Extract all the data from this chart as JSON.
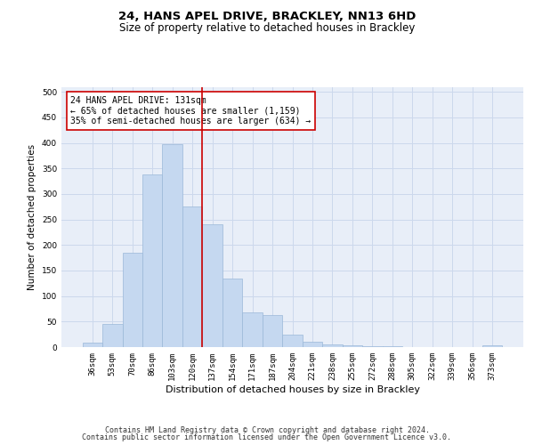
{
  "title_line1": "24, HANS APEL DRIVE, BRACKLEY, NN13 6HD",
  "title_line2": "Size of property relative to detached houses in Brackley",
  "xlabel": "Distribution of detached houses by size in Brackley",
  "ylabel": "Number of detached properties",
  "categories": [
    "36sqm",
    "53sqm",
    "70sqm",
    "86sqm",
    "103sqm",
    "120sqm",
    "137sqm",
    "154sqm",
    "171sqm",
    "187sqm",
    "204sqm",
    "221sqm",
    "238sqm",
    "255sqm",
    "272sqm",
    "288sqm",
    "305sqm",
    "322sqm",
    "339sqm",
    "356sqm",
    "373sqm"
  ],
  "values": [
    8,
    46,
    184,
    338,
    397,
    275,
    240,
    135,
    68,
    62,
    25,
    11,
    5,
    4,
    2,
    1,
    0,
    0,
    0,
    0,
    3
  ],
  "bar_color": "#c5d8f0",
  "bar_edge_color": "#9ab8d8",
  "vline_x": 5.5,
  "vline_color": "#cc0000",
  "annotation_text": "24 HANS APEL DRIVE: 131sqm\n← 65% of detached houses are smaller (1,159)\n35% of semi-detached houses are larger (634) →",
  "annotation_box_color": "#ffffff",
  "annotation_box_edge": "#cc0000",
  "annotation_fontsize": 7.0,
  "grid_color": "#ccd8ec",
  "background_color": "#e8eef8",
  "ylim": [
    0,
    510
  ],
  "yticks": [
    0,
    50,
    100,
    150,
    200,
    250,
    300,
    350,
    400,
    450,
    500
  ],
  "footnote_line1": "Contains HM Land Registry data © Crown copyright and database right 2024.",
  "footnote_line2": "Contains public sector information licensed under the Open Government Licence v3.0.",
  "title_fontsize": 9.5,
  "subtitle_fontsize": 8.5,
  "xlabel_fontsize": 8.0,
  "ylabel_fontsize": 7.5,
  "tick_fontsize": 6.5,
  "footnote_fontsize": 6.0
}
